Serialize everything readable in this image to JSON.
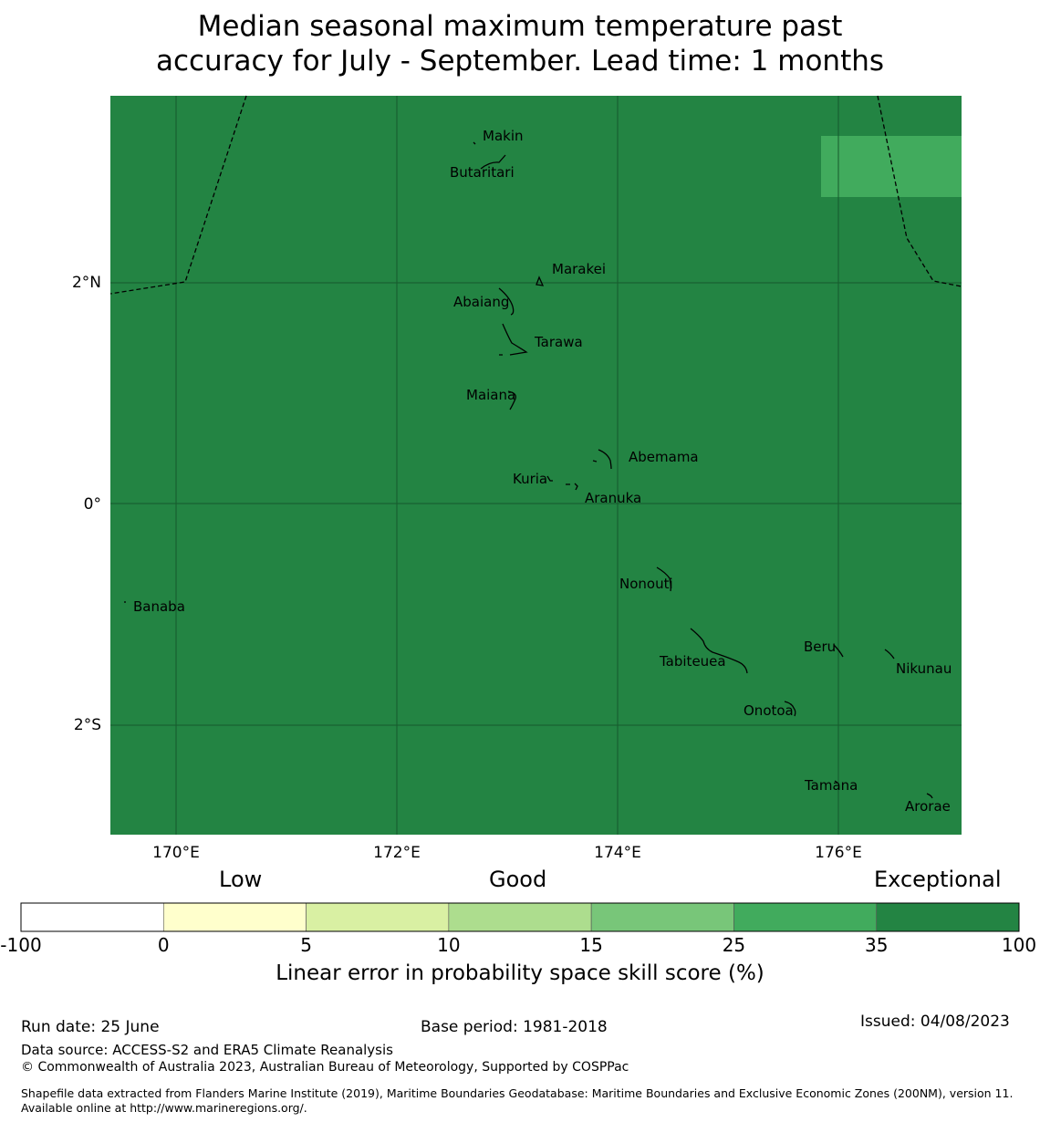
{
  "title": {
    "line1": "Median seasonal maximum temperature past",
    "line2": "accuracy for July - September. Lead time: 1 months"
  },
  "map": {
    "fill_color": "#238443",
    "highlight_color": "#41ab5d",
    "lon_ticks": [
      "170°E",
      "172°E",
      "174°E",
      "176°E"
    ],
    "lat_ticks": [
      "2°N",
      "0°",
      "2°S"
    ],
    "islands": [
      {
        "name": "Makin"
      },
      {
        "name": "Butaritari"
      },
      {
        "name": "Marakei"
      },
      {
        "name": "Abaiang"
      },
      {
        "name": "Tarawa"
      },
      {
        "name": "Maiana"
      },
      {
        "name": "Abemama"
      },
      {
        "name": "Kuria"
      },
      {
        "name": "Aranuka"
      },
      {
        "name": "Nonouti"
      },
      {
        "name": "Banaba"
      },
      {
        "name": "Tabiteuea"
      },
      {
        "name": "Beru"
      },
      {
        "name": "Nikunau"
      },
      {
        "name": "Onotoa"
      },
      {
        "name": "Tamana"
      },
      {
        "name": "Arorae"
      }
    ]
  },
  "colorbar": {
    "headings": [
      "Low",
      "Good",
      "Exceptional"
    ],
    "bins": [
      {
        "color": "#ffffff"
      },
      {
        "color": "#ffffcc"
      },
      {
        "color": "#d9f0a3"
      },
      {
        "color": "#addd8e"
      },
      {
        "color": "#78c679"
      },
      {
        "color": "#41ab5d"
      },
      {
        "color": "#238443"
      }
    ],
    "ticks": [
      "-100",
      "0",
      "5",
      "10",
      "15",
      "25",
      "35",
      "100"
    ],
    "label": "Linear error in probability space skill score (%)"
  },
  "footer": {
    "run_date": "Run date: 25 June",
    "base_period": "Base period: 1981-2018",
    "issued": "Issued: 04/08/2023",
    "data_source": "Data source: ACCESS-S2 and ERA5 Climate Reanalysis",
    "copyright": "© Commonwealth of Australia 2023, Australian Bureau of Meteorology, Supported by COSPPac",
    "shapefile": "Shapefile data extracted from Flanders Marine Institute (2019), Maritime Boundaries Geodatabase: Maritime Boundaries and Exclusive Economic Zones (200NM), version 11. Available online at http://www.marineregions.org/."
  }
}
